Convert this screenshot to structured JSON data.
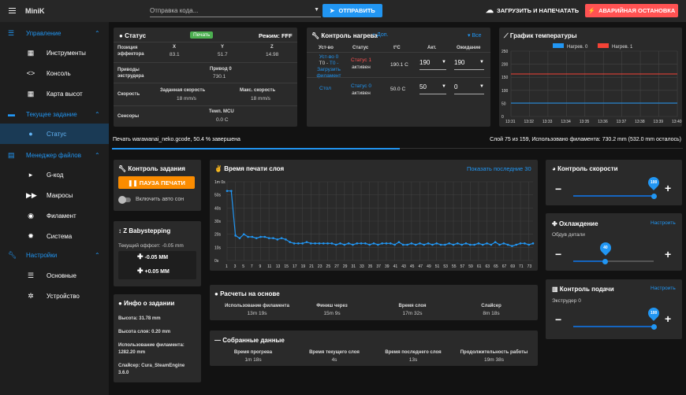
{
  "topbar": {
    "title": "MiniK",
    "gcode_placeholder": "Отправка кода...",
    "send": "ОТПРАВИТЬ",
    "upload": "ЗАГРУЗИТЬ И НАПЕЧАТАТЬ",
    "estop": "АВАРИЙНАЯ ОСТАНОВКА"
  },
  "sidebar": {
    "g1": "Управление",
    "g1_items": [
      "Инструменты",
      "Консоль",
      "Карта высот"
    ],
    "g2": "Текущее задание",
    "g2_items": [
      "Статус"
    ],
    "g3": "Менеджер файлов",
    "g3_items": [
      "G-код",
      "Макросы",
      "Филамент",
      "Система"
    ],
    "g4": "Настройки",
    "g4_items": [
      "Основные",
      "Устройство"
    ]
  },
  "status": {
    "title": "Статус",
    "badge": "Печать",
    "mode": "Режим: FFF",
    "pos_label": "Позиция эффектора",
    "axes": [
      "X",
      "Y",
      "Z"
    ],
    "pos": [
      "83.1",
      "51.7",
      "14.98"
    ],
    "drives_label": "Приводы экструдера",
    "drive_h": "Привод 0",
    "drive_v": "730.1",
    "speed_label": "Скорость",
    "req_h": "Заданная скорость",
    "req_v": "18 mm/s",
    "top_h": "Макс. скорость",
    "top_v": "18 mm/s",
    "sensors_label": "Сенсоры",
    "mcu_h": "Темп. MCU",
    "mcu_v": "0.0 C"
  },
  "heat": {
    "title": "Контроль нагрева",
    "extra": "Доп.",
    "all": "Все",
    "cols": [
      "Уст-во",
      "Статус",
      "t°C",
      "Акт.",
      "Ожидание"
    ],
    "rows": [
      {
        "dev1": "Уст-во 0",
        "dev2": "T0 - Загрузить филамент",
        "st1": "Статус 1",
        "st2": "активен",
        "cur": "190.1 C",
        "act": "190",
        "stb": "190"
      },
      {
        "dev1": "Стол",
        "dev2": "",
        "st1": "Статус 0",
        "st2": "активен",
        "cur": "50.0 C",
        "act": "50",
        "stb": "0"
      }
    ]
  },
  "tchart": {
    "title": "График температуры",
    "legend": [
      "Нагрев. 0",
      "Нагрев. 1"
    ],
    "yticks": [
      "250",
      "200",
      "150",
      "100",
      "50",
      "0"
    ],
    "xticks": [
      "13:31",
      "13:32",
      "13:33",
      "13:34",
      "13:35",
      "13:36",
      "13:37",
      "13:38",
      "13:39",
      "13:40"
    ]
  },
  "progress": {
    "left": "Печать warawanai_neko.gcode, 50.4 % завершена",
    "right": "Слой 75 из 159, Использовано филамента: 730.2 mm (532.0 mm осталось)",
    "fraction": 0.504
  },
  "job": {
    "title": "Контроль задания",
    "pause": "ПАУЗА ПЕЧАТИ",
    "autosleep": "Включить авто сон"
  },
  "zbaby": {
    "title": "Z Babystepping",
    "offset": "Текущий оффсет: -0.05 mm",
    "minus": "-0.05 MM",
    "plus": "+0.05 MM"
  },
  "jobinfo": {
    "title": "Инфо о задании",
    "height": "Высота: 31.78 mm",
    "layer": "Высота слоя: 0.20 mm",
    "fil1": "Использование филамента:",
    "fil2": "1282.20 mm",
    "slicer1": "Слайсер: Cura_SteamEngine",
    "slicer2": "3.6.0"
  },
  "lchart": {
    "title": "Время печати слоя",
    "showlast": "Показать последние 30",
    "yticks": [
      "1m 0s",
      "50s",
      "40s",
      "30s",
      "20s",
      "10s",
      "0s"
    ],
    "xticks": [
      "1",
      "3",
      "5",
      "7",
      "9",
      "11",
      "13",
      "15",
      "17",
      "19",
      "21",
      "23",
      "25",
      "27",
      "29",
      "31",
      "33",
      "35",
      "37",
      "39",
      "41",
      "43",
      "45",
      "47",
      "49",
      "51",
      "53",
      "55",
      "57",
      "59",
      "61",
      "63",
      "65",
      "67",
      "69",
      "71",
      "73"
    ]
  },
  "chart_data": {
    "type": "line",
    "title": "Время печати слоя",
    "x": [
      1,
      2,
      3,
      4,
      5,
      6,
      7,
      8,
      9,
      10,
      11,
      12,
      13,
      14,
      15,
      16,
      17,
      18,
      19,
      20,
      21,
      22,
      23,
      24,
      25,
      26,
      27,
      28,
      29,
      30,
      31,
      32,
      33,
      34,
      35,
      36,
      37,
      38,
      39,
      40,
      41,
      42,
      43,
      44,
      45,
      46,
      47,
      48,
      49,
      50,
      51,
      52,
      53,
      54,
      55,
      56,
      57,
      58,
      59,
      60,
      61,
      62,
      63,
      64,
      65,
      66,
      67,
      68,
      69,
      70,
      71,
      72,
      73,
      74
    ],
    "values": [
      53,
      53,
      19,
      17,
      20,
      18,
      18,
      17,
      18,
      18,
      17,
      17,
      16,
      17,
      16,
      14,
      13,
      13,
      13,
      14,
      13,
      13,
      13,
      13,
      13,
      13,
      12,
      13,
      12,
      13,
      12,
      13,
      13,
      13,
      12,
      13,
      12,
      13,
      13,
      13,
      12,
      14,
      12,
      12,
      13,
      12,
      13,
      12,
      13,
      12,
      13,
      12,
      12,
      13,
      12,
      13,
      12,
      13,
      12,
      12,
      13,
      12,
      13,
      12,
      14,
      12,
      13,
      12,
      11,
      12,
      13,
      13,
      12,
      13
    ],
    "ylim": [
      0,
      60
    ]
  },
  "estim": {
    "title": "Расчеты на основе",
    "cols": [
      {
        "h": "Использование филамента",
        "v": "13m 19s"
      },
      {
        "h": "Финиш через",
        "v": "15m 9s"
      },
      {
        "h": "Время слоя",
        "v": "17m 32s"
      },
      {
        "h": "Слайсер",
        "v": "8m 18s"
      }
    ]
  },
  "collected": {
    "title": "Собранные данные",
    "cols": [
      {
        "h": "Время прогрева",
        "v": "1m 18s"
      },
      {
        "h": "Время текущего слоя",
        "v": "4s"
      },
      {
        "h": "Время последнего слоя",
        "v": "13s"
      },
      {
        "h": "Продолжительность работы",
        "v": "19m 38s"
      }
    ]
  },
  "speed": {
    "title": "Контроль скорости",
    "value": "100",
    "level": 1.0
  },
  "cooling": {
    "title": "Охлаждение",
    "config": "Настроить",
    "sub": "Обдув детали",
    "value": "40",
    "level": 0.4
  },
  "extrude": {
    "title": "Контроль подачи",
    "config": "Настроить",
    "sub": "Экструдер 0",
    "value": "100",
    "level": 1.0
  }
}
